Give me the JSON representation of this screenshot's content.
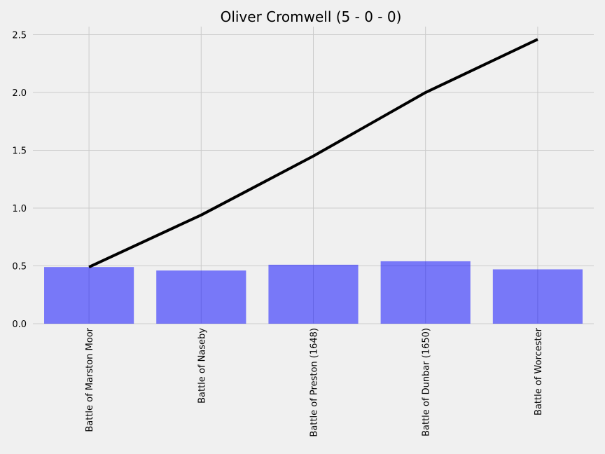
{
  "chart_data": {
    "type": "bar",
    "title": "Oliver Cromwell (5 - 0 - 0)",
    "xlabel": "",
    "ylabel": "",
    "categories": [
      "Battle of Marston Moor",
      "Battle of Naseby",
      "Battle of Preston (1648)",
      "Battle of Dunbar (1650)",
      "Battle of Worcester"
    ],
    "series": [
      {
        "type": "bar",
        "values": [
          0.49,
          0.46,
          0.51,
          0.54,
          0.47
        ]
      },
      {
        "type": "line",
        "values": [
          0.49,
          0.94,
          1.45,
          2.0,
          2.46
        ]
      }
    ],
    "ylim": [
      0,
      2.57
    ],
    "yticks": [
      "0.0",
      "0.5",
      "1.0",
      "1.5",
      "2.0",
      "2.5"
    ],
    "grid": true,
    "colors": {
      "bar": "#0000ff",
      "line": "#000000",
      "background": "#f0f0f0",
      "grid": "#cbcbcb"
    }
  }
}
